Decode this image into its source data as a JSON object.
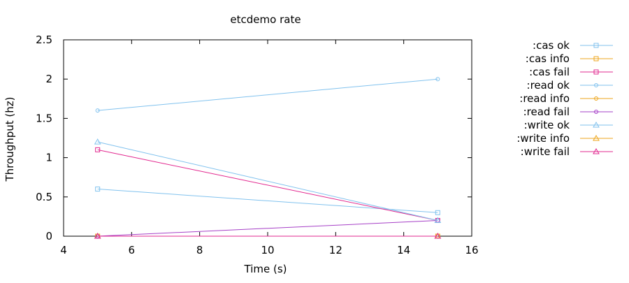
{
  "chart_data": {
    "type": "line",
    "title": "etcdemo rate",
    "xlabel": "Time (s)",
    "ylabel": "Throughput (hz)",
    "xlim": [
      4,
      16
    ],
    "ylim": [
      0,
      2.5
    ],
    "xticks": [
      "4",
      "6",
      "8",
      "10",
      "12",
      "14",
      "16"
    ],
    "yticks": [
      "0",
      "0.5",
      "1",
      "1.5",
      "2",
      "2.5"
    ],
    "grid": false,
    "legend_position": "right",
    "series": [
      {
        "name": ":cas ok",
        "color": "#81c2ee",
        "marker": "square",
        "x": [
          5,
          15
        ],
        "y": [
          0.6,
          0.3
        ]
      },
      {
        "name": ":cas info",
        "color": "#eda61c",
        "marker": "square",
        "x": [
          5,
          15
        ],
        "y": [
          0,
          0
        ]
      },
      {
        "name": ":cas fail",
        "color": "#e2288f",
        "marker": "square",
        "x": [
          5,
          15
        ],
        "y": [
          1.1,
          0.2
        ]
      },
      {
        "name": ":read ok",
        "color": "#81c2ee",
        "marker": "circle",
        "x": [
          5,
          15
        ],
        "y": [
          1.6,
          2.0
        ]
      },
      {
        "name": ":read info",
        "color": "#eda61c",
        "marker": "circle",
        "x": [
          5,
          15
        ],
        "y": [
          0,
          0
        ]
      },
      {
        "name": ":read fail",
        "color": "#a640c7",
        "marker": "circle",
        "x": [
          5,
          15
        ],
        "y": [
          0,
          0.2
        ]
      },
      {
        "name": ":write ok",
        "color": "#81c2ee",
        "marker": "triangle",
        "x": [
          5,
          15
        ],
        "y": [
          1.2,
          0.2
        ]
      },
      {
        "name": ":write info",
        "color": "#eda61c",
        "marker": "triangle",
        "x": [
          5,
          15
        ],
        "y": [
          0,
          0
        ]
      },
      {
        "name": ":write fail",
        "color": "#e2288f",
        "marker": "triangle",
        "x": [
          5,
          15
        ],
        "y": [
          0,
          0
        ]
      }
    ]
  }
}
